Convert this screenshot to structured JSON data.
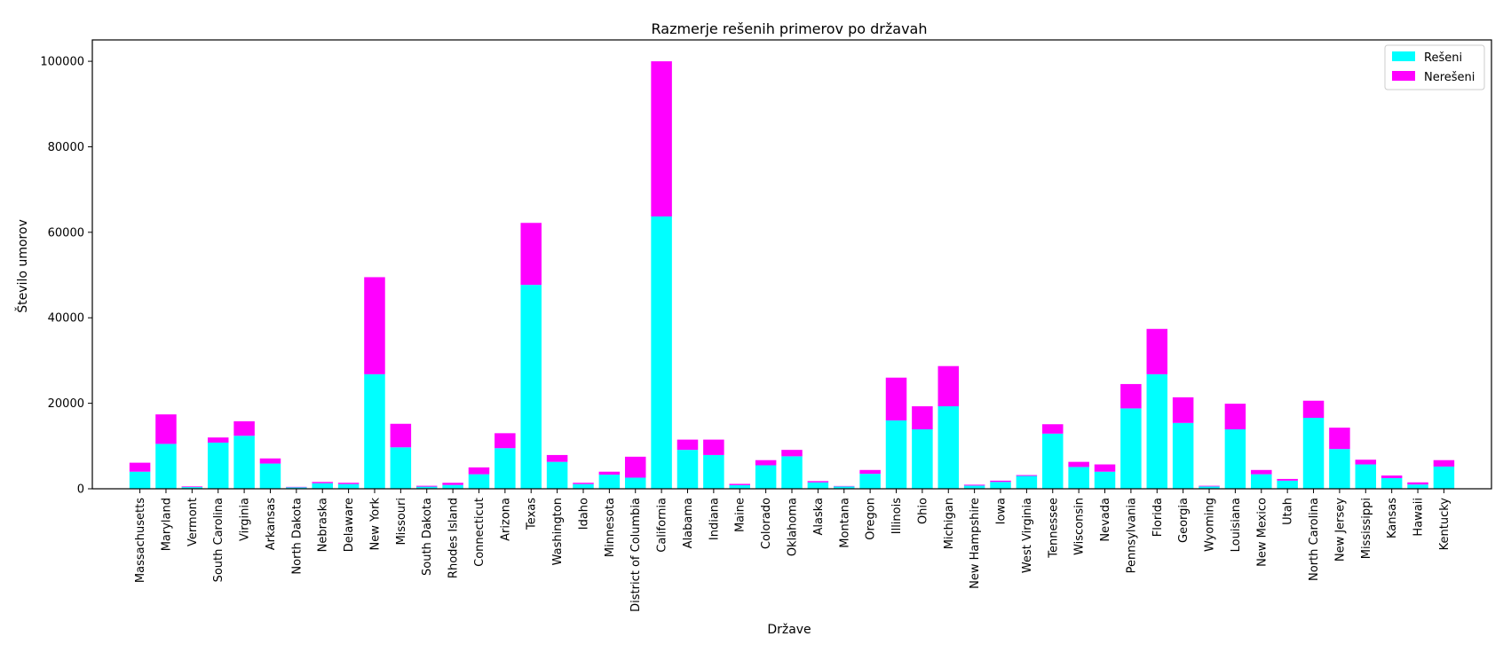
{
  "chart_data": {
    "type": "bar",
    "stacked": true,
    "title": "Razmerje rešenih primerov po državah",
    "xlabel": "Države",
    "ylabel": "Število umorov",
    "ylim": [
      0,
      105000
    ],
    "yticks": [
      0,
      20000,
      40000,
      60000,
      80000,
      100000
    ],
    "grid": false,
    "legend_position": "top-right",
    "categories": [
      "Massachusetts",
      "Maryland",
      "Vermont",
      "South Carolina",
      "Virginia",
      "Arkansas",
      "North Dakota",
      "Nebraska",
      "Delaware",
      "New York",
      "Missouri",
      "South Dakota",
      "Rhodes Island",
      "Connecticut",
      "Arizona",
      "Texas",
      "Washington",
      "Idaho",
      "Minnesota",
      "District of Columbia",
      "California",
      "Alabama",
      "Indiana",
      "Maine",
      "Colorado",
      "Oklahoma",
      "Alaska",
      "Montana",
      "Oregon",
      "Illinois",
      "Ohio",
      "Michigan",
      "New Hampshire",
      "Iowa",
      "West Virginia",
      "Tennessee",
      "Wisconsin",
      "Nevada",
      "Pennsylvania",
      "Florida",
      "Georgia",
      "Wyoming",
      "Louisiana",
      "New Mexico",
      "Utah",
      "North Carolina",
      "New Jersey",
      "Mississippi",
      "Kansas",
      "Hawaii",
      "Kentucky"
    ],
    "series": [
      {
        "name": "Rešeni",
        "color": "#00FFFF",
        "values": [
          4000,
          10500,
          400,
          10800,
          12400,
          5900,
          350,
          1300,
          1100,
          26800,
          9700,
          500,
          900,
          3400,
          9500,
          47700,
          6300,
          1100,
          3300,
          2600,
          63700,
          9100,
          7900,
          850,
          5500,
          7600,
          1500,
          550,
          3500,
          16000,
          13900,
          19300,
          750,
          1600,
          3000,
          12900,
          5100,
          4000,
          18800,
          26800,
          15400,
          550,
          13900,
          3400,
          1900,
          16600,
          9300,
          5700,
          2500,
          1000,
          5200
        ]
      },
      {
        "name": "Nerešeni",
        "color": "#FF00FF",
        "values": [
          2100,
          6900,
          150,
          1200,
          3400,
          1200,
          100,
          300,
          300,
          22700,
          5500,
          200,
          500,
          1600,
          3500,
          14500,
          1600,
          300,
          700,
          4900,
          36300,
          2400,
          3600,
          300,
          1200,
          1500,
          300,
          100,
          900,
          10000,
          5400,
          9400,
          200,
          300,
          200,
          2200,
          1200,
          1700,
          5700,
          10600,
          6000,
          150,
          6000,
          1000,
          400,
          4000,
          5000,
          1100,
          600,
          500,
          1500
        ]
      }
    ]
  }
}
